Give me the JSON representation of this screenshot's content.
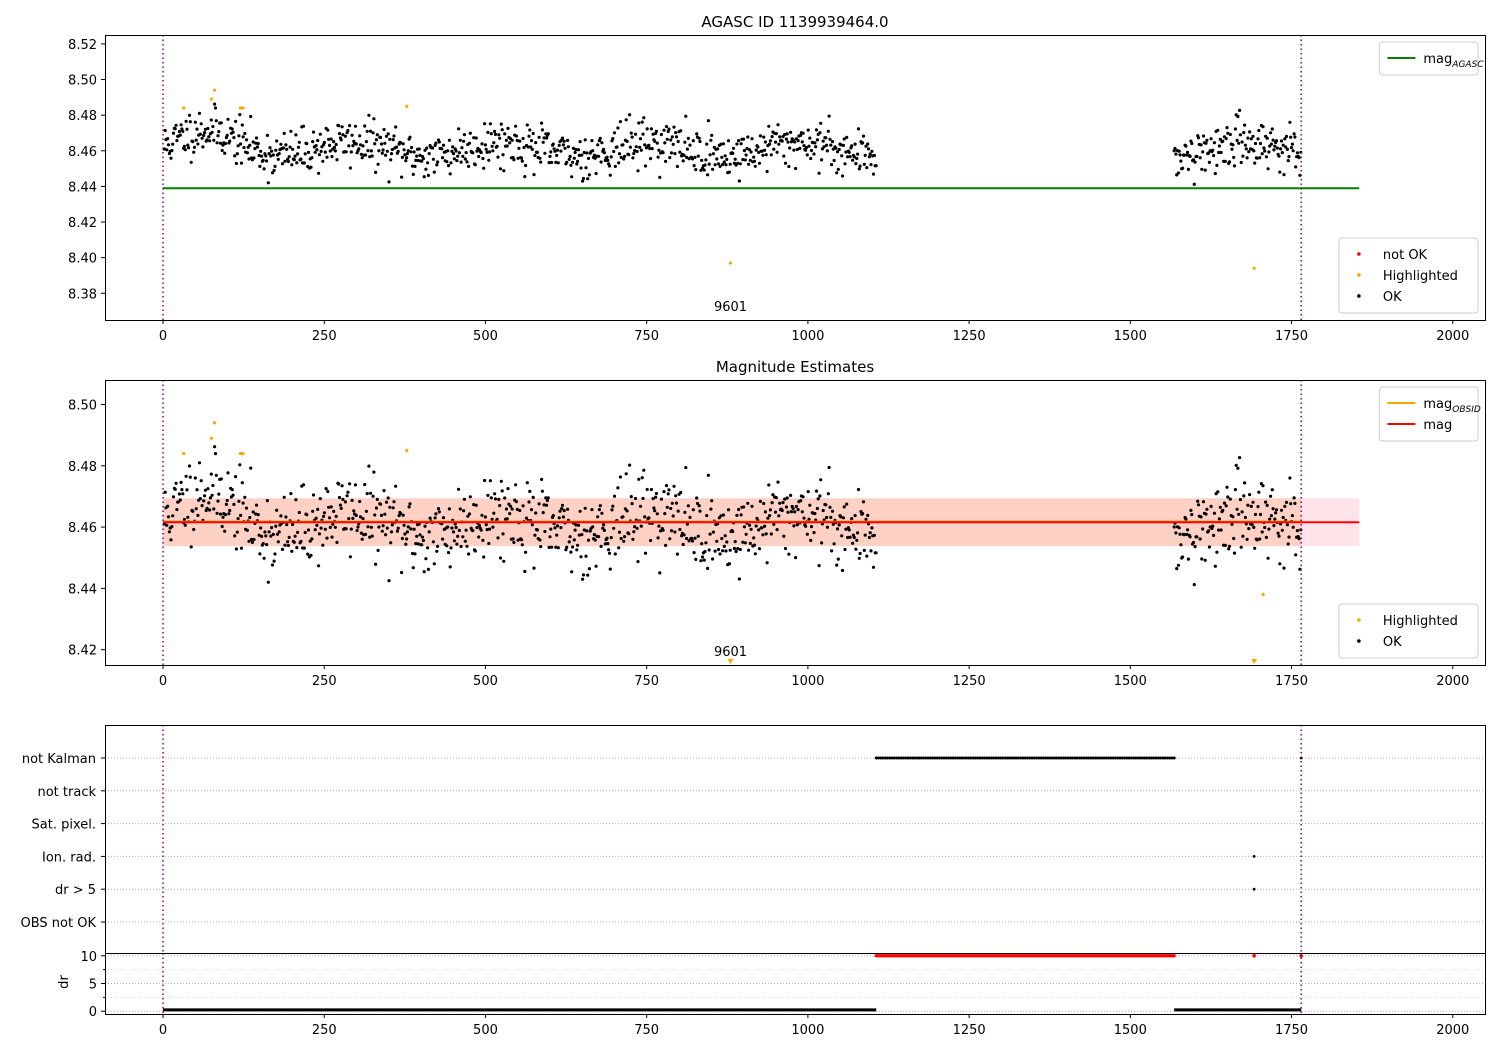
{
  "chart_data": [
    {
      "type": "scatter",
      "title": "AGASC ID 1139939464.0",
      "xlabel": "",
      "ylabel": "",
      "xlim": [
        -90,
        2050
      ],
      "ylim": [
        8.365,
        8.525
      ],
      "xticks": [
        0,
        250,
        500,
        750,
        1000,
        1250,
        1500,
        1750,
        2000
      ],
      "yticks": [
        8.38,
        8.4,
        8.42,
        8.44,
        8.46,
        8.48,
        8.5,
        8.52
      ],
      "ytick_decimals": 2,
      "vlines": [
        0,
        1765
      ],
      "vline_color": "#800080",
      "obsid_label": {
        "text": "9601",
        "x": 880
      },
      "series": [
        {
          "name": "mag_AGASC",
          "kind": "hline",
          "y": 8.439,
          "x_range": [
            0,
            1855
          ],
          "color": "#008000"
        },
        {
          "name": "not OK",
          "kind": "points",
          "color": "#ff0000",
          "points": []
        },
        {
          "name": "Highlighted",
          "kind": "points",
          "color": "#ffa500",
          "points": [
            [
              32,
              8.484
            ],
            [
              75,
              8.489
            ],
            [
              80,
              8.494
            ],
            [
              120,
              8.484
            ],
            [
              124,
              8.484
            ],
            [
              378,
              8.485
            ],
            [
              880,
              8.397
            ],
            [
              1692,
              8.394
            ]
          ]
        },
        {
          "name": "OK",
          "kind": "points",
          "color": "#000000",
          "generator": {
            "seed": 11,
            "segments": [
              [
                2,
                1106
              ],
              [
                1568,
                1765
              ]
            ],
            "step": 1.3,
            "mean": 8.461,
            "noise": 0.0065,
            "wave_amp": 0.007,
            "wave_center": 75,
            "wave_width": 60
          }
        }
      ],
      "legends": [
        {
          "position": "top-right",
          "items": [
            {
              "label": "mag",
              "sub": "AGASC",
              "kind": "line",
              "color": "#008000"
            }
          ]
        },
        {
          "position": "bottom-right",
          "items": [
            {
              "label": "not OK",
              "kind": "dot",
              "color": "#ff0000"
            },
            {
              "label": "Highlighted",
              "kind": "dot",
              "color": "#ffa500"
            },
            {
              "label": "OK",
              "kind": "dot",
              "color": "#000000"
            }
          ]
        }
      ]
    },
    {
      "type": "scatter",
      "title": "Magnitude Estimates",
      "xlabel": "",
      "ylabel": "",
      "xlim": [
        -90,
        2050
      ],
      "ylim": [
        8.415,
        8.508
      ],
      "xticks": [
        0,
        250,
        500,
        750,
        1000,
        1250,
        1500,
        1750,
        2000
      ],
      "yticks": [
        8.42,
        8.44,
        8.46,
        8.48,
        8.5
      ],
      "ytick_decimals": 2,
      "vlines": [
        0,
        1765
      ],
      "vline_color": "#800080",
      "obsid_label": {
        "text": "9601",
        "x": 880
      },
      "bands": [
        {
          "x_range": [
            0,
            1855
          ],
          "y_range": [
            8.4538,
            8.4694
          ],
          "color": "#ffc0cb",
          "opacity": 0.45
        },
        {
          "x_range": [
            0,
            1765
          ],
          "y_range": [
            8.4538,
            8.4694
          ],
          "color": "#ffb080",
          "opacity": 0.35
        }
      ],
      "series": [
        {
          "name": "mag_OBSID",
          "kind": "hline",
          "y": 8.4618,
          "x_range": [
            0,
            1765
          ],
          "color": "#ffa500"
        },
        {
          "name": "mag",
          "kind": "hline",
          "y": 8.4616,
          "x_range": [
            0,
            1855
          ],
          "color": "#ff0000"
        },
        {
          "name": "Highlighted",
          "kind": "points",
          "color": "#ffa500",
          "points": [
            [
              32,
              8.484
            ],
            [
              75,
              8.489
            ],
            [
              80,
              8.494
            ],
            [
              120,
              8.484
            ],
            [
              124,
              8.484
            ],
            [
              378,
              8.485
            ],
            [
              1706,
              8.438
            ]
          ]
        },
        {
          "name": "Highlighted (below range)",
          "kind": "triangles",
          "color": "#ffa500",
          "points": [
            [
              880,
              8.4155
            ],
            [
              1692,
              8.4155
            ]
          ]
        },
        {
          "name": "OK",
          "kind": "points",
          "color": "#000000",
          "generator": {
            "seed": 11,
            "segments": [
              [
                2,
                1106
              ],
              [
                1568,
                1765
              ]
            ],
            "step": 1.3,
            "mean": 8.461,
            "noise": 0.0065,
            "wave_amp": 0.007,
            "wave_center": 75,
            "wave_width": 60
          }
        }
      ],
      "legends": [
        {
          "position": "top-right",
          "items": [
            {
              "label": "mag",
              "sub": "OBSID",
              "kind": "line",
              "color": "#ffa500"
            },
            {
              "label": "mag",
              "sub": "",
              "kind": "line",
              "color": "#ff0000"
            }
          ]
        },
        {
          "position": "bottom-right",
          "items": [
            {
              "label": "Highlighted",
              "kind": "dot",
              "color": "#ffa500"
            },
            {
              "label": "OK",
              "kind": "dot",
              "color": "#000000"
            }
          ]
        }
      ]
    },
    {
      "type": "scatter",
      "title": "",
      "xlabel": "",
      "ylabel": "",
      "xlim": [
        -90,
        2050
      ],
      "categories": [
        "not Kalman",
        "not track",
        "Sat. pixel.",
        "Ion. rad.",
        "dr > 5",
        "OBS not OK"
      ],
      "vlines": [
        0,
        1765
      ],
      "vline_color": "#800080",
      "flags": [
        {
          "category": "not Kalman",
          "ranges": [
            [
              1106,
              1568
            ]
          ],
          "step": 3.5,
          "points": [
            1765
          ]
        },
        {
          "category": "Ion. rad.",
          "ranges": [],
          "points": [
            1692
          ]
        },
        {
          "category": "dr > 5",
          "ranges": [],
          "points": [
            1692
          ]
        }
      ]
    },
    {
      "type": "scatter",
      "title": "",
      "xlabel": "",
      "ylabel": "dr",
      "xlim": [
        -90,
        2050
      ],
      "ylim": [
        -0.5,
        10.5
      ],
      "xticks": [
        0,
        250,
        500,
        750,
        1000,
        1250,
        1500,
        1750,
        2000
      ],
      "yticks": [
        0,
        5,
        10
      ],
      "ytick_decimals": 0,
      "vlines": [
        0,
        1765
      ],
      "vline_color": "#800080",
      "series": [
        {
          "name": "dr OK",
          "kind": "segments",
          "color": "#000000",
          "ranges": [
            [
              0,
              1106
            ],
            [
              1568,
              1765
            ]
          ],
          "y": 0.25
        },
        {
          "name": "dr not OK",
          "kind": "points",
          "color": "#ff0000",
          "range": [
            1106,
            1568
          ],
          "step": 2.0,
          "y": 10,
          "extra": [
            [
              1692,
              10
            ],
            [
              1765,
              10
            ]
          ]
        }
      ]
    }
  ]
}
